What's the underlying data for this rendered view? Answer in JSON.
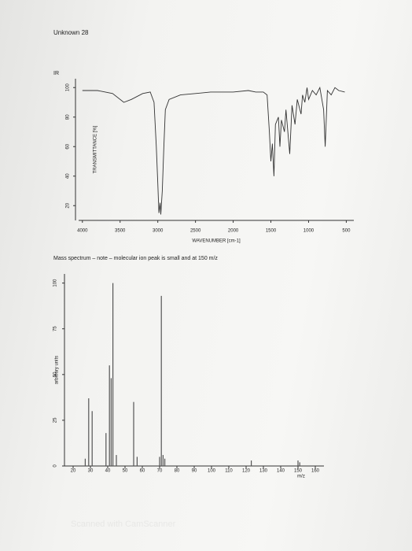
{
  "title": "Unknown 28",
  "watermark": "Scanned with CamScanner",
  "chart_data": [
    {
      "type": "line",
      "title": "IR",
      "x_label": "WAVENUMBER [cm-1]",
      "y_label": "TRANSMITTANCE [%]",
      "color": "#333333",
      "x": [
        4000,
        3800,
        3600,
        3450,
        3350,
        3200,
        3100,
        3050,
        3020,
        3000,
        2985,
        2970,
        2960,
        2940,
        2920,
        2900,
        2850,
        2700,
        2500,
        2300,
        2000,
        1800,
        1700,
        1600,
        1550,
        1520,
        1500,
        1480,
        1460,
        1440,
        1400,
        1380,
        1360,
        1320,
        1300,
        1250,
        1220,
        1180,
        1150,
        1100,
        1080,
        1050,
        1020,
        1000,
        950,
        900,
        850,
        800,
        780,
        750,
        700,
        650,
        600,
        520
      ],
      "values": [
        98,
        98,
        96,
        90,
        92,
        96,
        97,
        90,
        60,
        35,
        15,
        22,
        14,
        30,
        60,
        85,
        92,
        95,
        96,
        97,
        97,
        98,
        97,
        97,
        95,
        70,
        50,
        62,
        40,
        75,
        80,
        60,
        78,
        70,
        85,
        55,
        88,
        75,
        92,
        82,
        95,
        90,
        100,
        92,
        98,
        95,
        100,
        85,
        60,
        98,
        95,
        100,
        98,
        97
      ],
      "xlim": [
        4050,
        400
      ],
      "xticks": [
        4000,
        3500,
        3000,
        2500,
        2000,
        1500,
        1000,
        500
      ],
      "ylim": [
        10,
        106
      ],
      "yticks": [
        20,
        40,
        60,
        80,
        100
      ]
    },
    {
      "type": "bar",
      "title": "Mass spectrum – note – molecular ion peak is small and at 150 m/z",
      "x_label": "m/z",
      "y_label": "arbitrary units",
      "color": "#555555",
      "x": [
        27,
        29,
        31,
        39,
        41,
        42,
        43,
        45,
        55,
        57,
        70,
        71,
        72,
        73,
        123,
        150,
        151
      ],
      "values": [
        4,
        37,
        30,
        18,
        55,
        48,
        100,
        6,
        35,
        5,
        5,
        93,
        6,
        4,
        3,
        3,
        2
      ],
      "xlim": [
        15,
        165
      ],
      "xticks": [
        20,
        30,
        40,
        50,
        60,
        70,
        80,
        90,
        100,
        110,
        120,
        130,
        140,
        150,
        160
      ],
      "ylim": [
        0,
        105
      ],
      "yticks": [
        0,
        25,
        50,
        75,
        100
      ]
    }
  ]
}
